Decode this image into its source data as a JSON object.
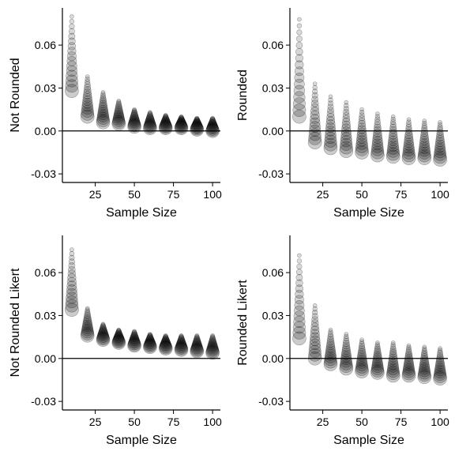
{
  "chart_data": [
    {
      "type": "scatter",
      "xlabel": "Sample Size",
      "ylabel": "Not Rounded",
      "xticks": [
        25,
        50,
        75,
        100
      ],
      "yticks": [
        -0.03,
        0.0,
        0.03,
        0.06
      ],
      "ytick_labels": [
        "-0.03",
        "0.00",
        "0.03",
        "0.06"
      ],
      "xlim": [
        4,
        105
      ],
      "ylim": [
        -0.036,
        0.086
      ],
      "reference_line_y": 0,
      "grid": false,
      "marker_color": "#000000",
      "groups": [
        {
          "x": 10,
          "min": 0.028,
          "max": 0.08
        },
        {
          "x": 20,
          "min": 0.01,
          "max": 0.038
        },
        {
          "x": 30,
          "min": 0.006,
          "max": 0.027
        },
        {
          "x": 40,
          "min": 0.005,
          "max": 0.021
        },
        {
          "x": 50,
          "min": 0.003,
          "max": 0.015
        },
        {
          "x": 60,
          "min": 0.002,
          "max": 0.013
        },
        {
          "x": 70,
          "min": 0.002,
          "max": 0.011
        },
        {
          "x": 80,
          "min": 0.002,
          "max": 0.01
        },
        {
          "x": 90,
          "min": 0.001,
          "max": 0.009
        },
        {
          "x": 100,
          "min": 0.0,
          "max": 0.009
        }
      ]
    },
    {
      "type": "scatter",
      "xlabel": "Sample Size",
      "ylabel": "Rounded",
      "xticks": [
        25,
        50,
        75,
        100
      ],
      "yticks": [
        -0.03,
        0.0,
        0.03,
        0.06
      ],
      "ytick_labels": [
        "-0.03",
        "0.00",
        "0.03",
        "0.06"
      ],
      "xlim": [
        4,
        105
      ],
      "ylim": [
        -0.036,
        0.086
      ],
      "reference_line_y": 0,
      "grid": false,
      "marker_color": "#000000",
      "groups": [
        {
          "x": 10,
          "min": 0.01,
          "max": 0.078
        },
        {
          "x": 20,
          "min": -0.008,
          "max": 0.033
        },
        {
          "x": 30,
          "min": -0.012,
          "max": 0.024
        },
        {
          "x": 40,
          "min": -0.014,
          "max": 0.02
        },
        {
          "x": 50,
          "min": -0.015,
          "max": 0.015
        },
        {
          "x": 60,
          "min": -0.017,
          "max": 0.012
        },
        {
          "x": 70,
          "min": -0.018,
          "max": 0.01
        },
        {
          "x": 80,
          "min": -0.019,
          "max": 0.008
        },
        {
          "x": 90,
          "min": -0.019,
          "max": 0.007
        },
        {
          "x": 100,
          "min": -0.02,
          "max": 0.006
        }
      ]
    },
    {
      "type": "scatter",
      "xlabel": "Sample Size",
      "ylabel": "Not Rounded Likert",
      "xticks": [
        25,
        50,
        75,
        100
      ],
      "yticks": [
        -0.03,
        0.0,
        0.03,
        0.06
      ],
      "ytick_labels": [
        "-0.03",
        "0.00",
        "0.03",
        "0.06"
      ],
      "xlim": [
        4,
        105
      ],
      "ylim": [
        -0.036,
        0.086
      ],
      "reference_line_y": 0,
      "grid": false,
      "marker_color": "#000000",
      "groups": [
        {
          "x": 10,
          "min": 0.034,
          "max": 0.076
        },
        {
          "x": 20,
          "min": 0.016,
          "max": 0.035
        },
        {
          "x": 30,
          "min": 0.013,
          "max": 0.024
        },
        {
          "x": 40,
          "min": 0.011,
          "max": 0.02
        },
        {
          "x": 50,
          "min": 0.009,
          "max": 0.019
        },
        {
          "x": 60,
          "min": 0.008,
          "max": 0.017
        },
        {
          "x": 70,
          "min": 0.007,
          "max": 0.016
        },
        {
          "x": 80,
          "min": 0.006,
          "max": 0.016
        },
        {
          "x": 90,
          "min": 0.005,
          "max": 0.016
        },
        {
          "x": 100,
          "min": 0.004,
          "max": 0.016
        }
      ]
    },
    {
      "type": "scatter",
      "xlabel": "Sample Size",
      "ylabel": "Rounded Likert",
      "xticks": [
        25,
        50,
        75,
        100
      ],
      "yticks": [
        -0.03,
        0.0,
        0.03,
        0.06
      ],
      "ytick_labels": [
        "-0.03",
        "0.00",
        "0.03",
        "0.06"
      ],
      "xlim": [
        4,
        105
      ],
      "ylim": [
        -0.036,
        0.086
      ],
      "reference_line_y": 0,
      "grid": false,
      "marker_color": "#000000",
      "groups": [
        {
          "x": 10,
          "min": 0.014,
          "max": 0.072
        },
        {
          "x": 20,
          "min": 0.0,
          "max": 0.037
        },
        {
          "x": 30,
          "min": -0.004,
          "max": 0.02
        },
        {
          "x": 40,
          "min": -0.007,
          "max": 0.017
        },
        {
          "x": 50,
          "min": -0.009,
          "max": 0.013
        },
        {
          "x": 60,
          "min": -0.01,
          "max": 0.011
        },
        {
          "x": 70,
          "min": -0.012,
          "max": 0.011
        },
        {
          "x": 80,
          "min": -0.012,
          "max": 0.009
        },
        {
          "x": 90,
          "min": -0.013,
          "max": 0.008
        },
        {
          "x": 100,
          "min": -0.014,
          "max": 0.007
        }
      ]
    }
  ]
}
